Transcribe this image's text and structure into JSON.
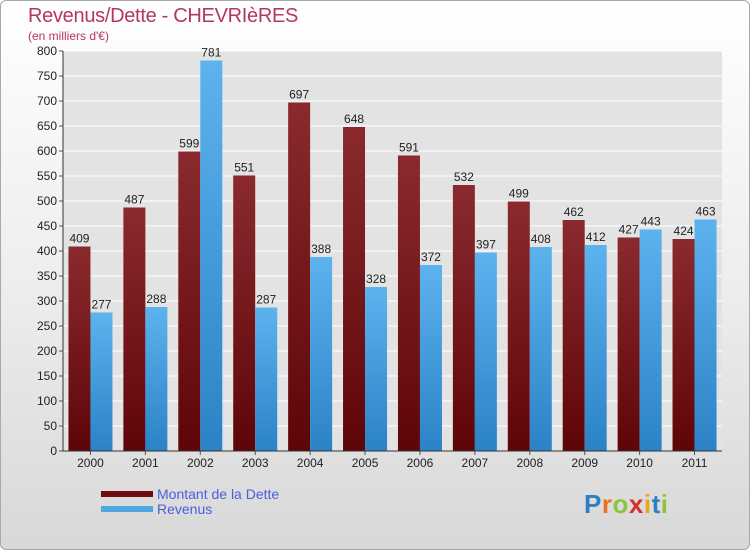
{
  "title": "Revenus/Dette - CHEVRIèRES",
  "subtitle": "(en milliers d'€)",
  "logo": {
    "letters": [
      {
        "ch": "P",
        "color": "#2e7fc1"
      },
      {
        "ch": "r",
        "color": "#e8731e"
      },
      {
        "ch": "o",
        "color": "#8cc43c"
      },
      {
        "ch": "x",
        "color": "#d62d2d"
      },
      {
        "ch": "i",
        "color": "#e8a81e"
      },
      {
        "ch": "t",
        "color": "#2e7fc1"
      },
      {
        "ch": "i",
        "color": "#8cc43c"
      }
    ]
  },
  "legend": [
    {
      "label": "Montant de la Dette",
      "color": "#6e0d12"
    },
    {
      "label": "Revenus",
      "color": "#4fa6e3"
    }
  ],
  "chart_data": {
    "type": "bar",
    "categories": [
      "2000",
      "2001",
      "2002",
      "2003",
      "2004",
      "2005",
      "2006",
      "2007",
      "2008",
      "2009",
      "2010",
      "2011"
    ],
    "series": [
      {
        "name": "Montant de la Dette",
        "color": "#7a1a1f",
        "values": [
          409,
          487,
          599,
          551,
          697,
          648,
          591,
          532,
          499,
          462,
          427,
          424
        ]
      },
      {
        "name": "Revenus",
        "color": "#4fa6e3",
        "values": [
          277,
          288,
          781,
          287,
          388,
          328,
          372,
          397,
          408,
          412,
          443,
          463
        ]
      }
    ],
    "ylim": [
      0,
      800
    ],
    "yticks": [
      0,
      50,
      100,
      150,
      200,
      250,
      300,
      350,
      400,
      450,
      500,
      550,
      600,
      650,
      700,
      750,
      800
    ],
    "grid": true,
    "legend_position": "bottom-left"
  }
}
